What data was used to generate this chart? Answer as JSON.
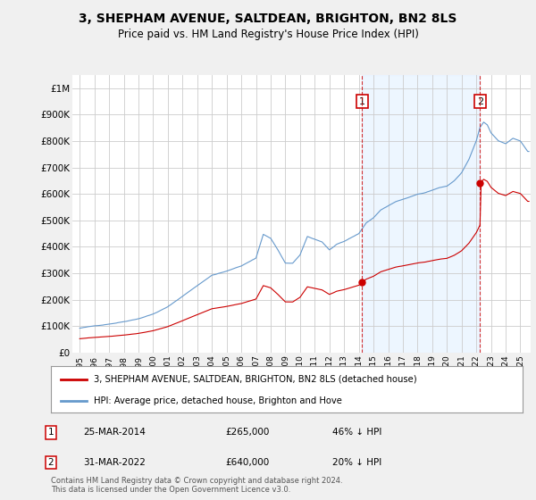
{
  "title": "3, SHEPHAM AVENUE, SALTDEAN, BRIGHTON, BN2 8LS",
  "subtitle": "Price paid vs. HM Land Registry's House Price Index (HPI)",
  "legend_label_red": "3, SHEPHAM AVENUE, SALTDEAN, BRIGHTON, BN2 8LS (detached house)",
  "legend_label_blue": "HPI: Average price, detached house, Brighton and Hove",
  "annotation1_date": "25-MAR-2014",
  "annotation1_price": "£265,000",
  "annotation1_hpi": "46% ↓ HPI",
  "annotation2_date": "31-MAR-2022",
  "annotation2_price": "£640,000",
  "annotation2_hpi": "20% ↓ HPI",
  "footer": "Contains HM Land Registry data © Crown copyright and database right 2024.\nThis data is licensed under the Open Government Licence v3.0.",
  "ytick_labels": [
    "£0",
    "£100K",
    "£200K",
    "£300K",
    "£400K",
    "£500K",
    "£600K",
    "£700K",
    "£800K",
    "£900K",
    "£1M"
  ],
  "sale1_year": 2014.23,
  "sale1_value": 265000,
  "sale2_year": 2022.25,
  "sale2_value": 640000,
  "red_color": "#cc0000",
  "blue_color": "#6699cc",
  "blue_fill": "#ddeeff",
  "vline_color": "#cc0000",
  "bg_color": "#f0f0f0",
  "plot_bg": "#ffffff",
  "grid_color": "#cccccc",
  "xlim_left": 1994.5,
  "xlim_right": 2025.7
}
